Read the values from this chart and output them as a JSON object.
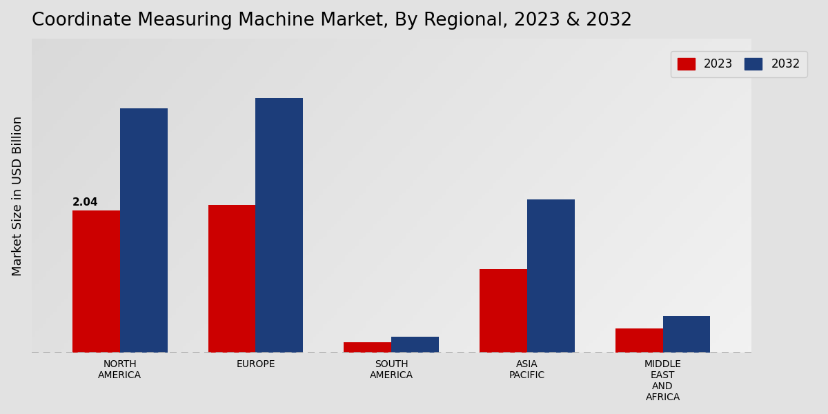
{
  "title": "Coordinate Measuring Machine Market, By Regional, 2023 & 2032",
  "ylabel": "Market Size in USD Billion",
  "categories": [
    "NORTH\nAMERICA",
    "EUROPE",
    "SOUTH\nAMERICA",
    "ASIA\nPACIFIC",
    "MIDDLE\nEAST\nAND\nAFRICA"
  ],
  "values_2023": [
    2.04,
    2.12,
    0.15,
    1.2,
    0.35
  ],
  "values_2032": [
    3.5,
    3.65,
    0.23,
    2.2,
    0.52
  ],
  "color_2023": "#cc0000",
  "color_2032": "#1c3d7a",
  "annotation_text": "2.04",
  "annotation_bar_index": 0,
  "bar_width": 0.35,
  "ylim": [
    0,
    4.5
  ],
  "legend_labels": [
    "2023",
    "2032"
  ],
  "title_fontsize": 19,
  "axis_label_fontsize": 13,
  "tick_label_fontsize": 10,
  "bg_light": "#f0f0f0",
  "bg_dark": "#d0d0d0"
}
